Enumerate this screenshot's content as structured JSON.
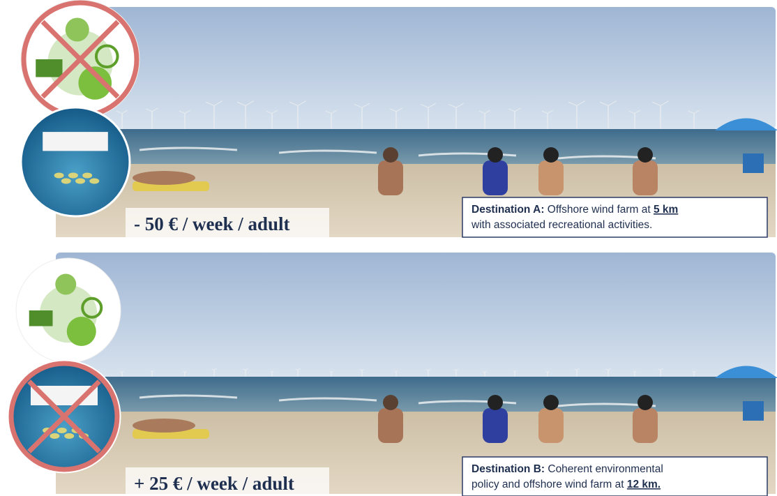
{
  "panels": [
    {
      "price": "- 50 € / week / adult",
      "caption_label": "Destination A:",
      "caption_text": " Offshore wind farm at ",
      "caption_distance": "5 km",
      "caption_line2": "with associated recreational activities."
    },
    {
      "price": "+ 25 € / week / adult",
      "caption_label": "Destination B:",
      "caption_text": " Coherent environmental",
      "caption_line2": "policy and offshore wind farm at ",
      "caption_distance": "12 km."
    }
  ]
}
